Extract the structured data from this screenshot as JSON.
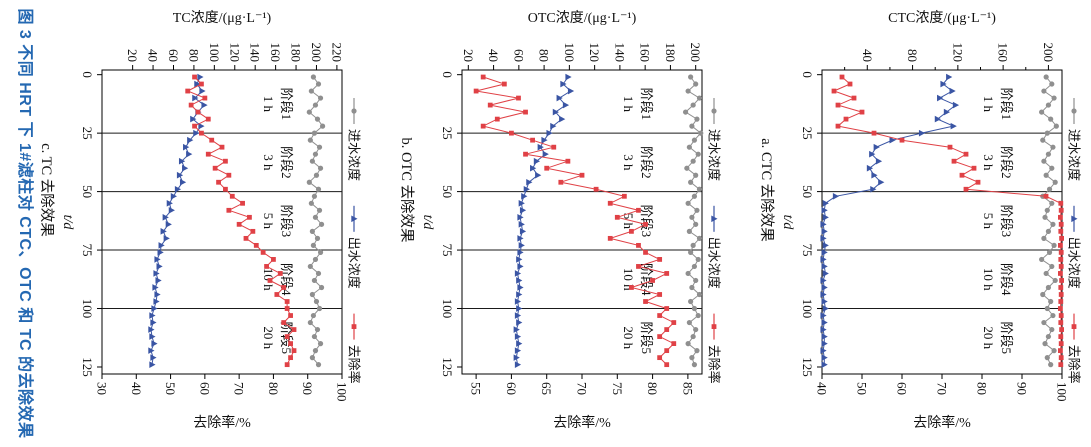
{
  "figure_caption": "图 3    不同 HRT 下 1#滤柱对 CTC、OTC 和 TC 的去除效果",
  "colors": {
    "influent": "#8f8f8f",
    "effluent": "#3a55a4",
    "removal": "#e04146",
    "caption_blue": "#2468b2",
    "axis": "#000000"
  },
  "legend": {
    "influent": "进水浓度",
    "effluent": "出水浓度",
    "removal": "去除率"
  },
  "stages": [
    {
      "line1": "阶段1",
      "line2": "1 h",
      "t_center": 12.5
    },
    {
      "line1": "阶段2",
      "line2": "3 h",
      "t_center": 37.5
    },
    {
      "line1": "阶段3",
      "line2": "5 h",
      "t_center": 62.5
    },
    {
      "line1": "阶段4",
      "line2": "10 h",
      "t_center": 87.5
    },
    {
      "line1": "阶段5",
      "line2": "20 h",
      "t_center": 112.5
    }
  ],
  "chart_data": [
    {
      "id": "a",
      "type": "line",
      "subtitle": "a. CTC 去除效果",
      "conc_axis": {
        "label": "CTC浓度/(μg·L⁻¹)",
        "ticks": [
          40,
          80,
          120,
          160,
          200
        ],
        "minor_ticks": [
          20,
          60,
          100,
          140,
          180
        ],
        "lim": [
          0,
          212
        ]
      },
      "removal_axis": {
        "label": "去除率/%",
        "ticks": [
          40,
          50,
          60,
          70,
          80,
          90,
          100
        ],
        "lim": [
          40,
          100
        ]
      },
      "time_axis": {
        "label": "t/d",
        "ticks": [
          0,
          25,
          50,
          75,
          100,
          125
        ],
        "lim": [
          -2,
          128
        ]
      },
      "stage_boundaries": [
        25,
        50,
        75,
        100
      ],
      "t": [
        1,
        4,
        7,
        10,
        13,
        16,
        19,
        22,
        25,
        28,
        31,
        34,
        37,
        40,
        43,
        46,
        49,
        52,
        55,
        58,
        61,
        64,
        67,
        70,
        73,
        76,
        79,
        82,
        85,
        88,
        91,
        94,
        97,
        100,
        103,
        106,
        109,
        112,
        115,
        118,
        121,
        124
      ],
      "series": [
        {
          "name": "进水浓度",
          "axis": "conc",
          "marker": "circle",
          "color_key": "influent",
          "values": [
            198,
            203,
            196,
            205,
            200,
            194,
            202,
            207,
            199,
            195,
            204,
            200,
            196,
            203,
            198,
            206,
            201,
            195,
            203,
            199,
            197,
            204,
            200,
            196,
            205,
            201,
            194,
            203,
            198,
            206,
            200,
            195,
            202,
            199,
            204,
            196,
            203,
            200,
            197,
            205,
            199,
            202
          ]
        },
        {
          "name": "出水浓度",
          "axis": "conc",
          "marker": "triangle",
          "color_key": "effluent",
          "values": [
            112,
            107,
            115,
            104,
            118,
            110,
            102,
            116,
            88,
            62,
            48,
            44,
            50,
            42,
            46,
            52,
            45,
            12,
            3,
            2,
            3,
            1,
            2,
            1,
            3,
            2,
            1,
            2,
            3,
            1,
            2,
            1,
            2,
            3,
            1,
            2,
            1,
            2,
            2,
            1,
            2,
            2
          ]
        },
        {
          "name": "去除率",
          "axis": "removal",
          "marker": "square",
          "color_key": "removal",
          "values": [
            45,
            47,
            43,
            48,
            44,
            50,
            46,
            44,
            53,
            60,
            72,
            76,
            73,
            78,
            75,
            79,
            76,
            96,
            99.7,
            99.8,
            99.6,
            99.8,
            99.7,
            99.9,
            99.6,
            99.8,
            99.7,
            99.8,
            99.6,
            99.9,
            99.7,
            99.8,
            99.7,
            99.6,
            99.8,
            99.7,
            99.9,
            99.7,
            99.8,
            99.6,
            99.8,
            99.7
          ]
        }
      ]
    },
    {
      "id": "b",
      "type": "line",
      "subtitle": "b. OTC 去除效果",
      "conc_axis": {
        "label": "OTC浓度/(μg·L⁻¹)",
        "ticks": [
          20,
          40,
          60,
          80,
          100,
          120,
          140,
          160,
          180,
          200
        ],
        "minor_ticks": [],
        "lim": [
          15,
          205
        ]
      },
      "removal_axis": {
        "label": "去除率/%",
        "ticks": [
          55,
          60,
          65,
          70,
          75,
          80,
          85
        ],
        "lim": [
          53,
          87
        ]
      },
      "time_axis": {
        "label": "t/d",
        "ticks": [
          0,
          25,
          50,
          75,
          100,
          125
        ],
        "lim": [
          -2,
          128
        ]
      },
      "stage_boundaries": [
        25,
        50,
        75,
        100
      ],
      "t": [
        1,
        4,
        7,
        10,
        13,
        16,
        19,
        22,
        25,
        28,
        31,
        34,
        37,
        40,
        43,
        46,
        49,
        52,
        55,
        58,
        61,
        64,
        67,
        70,
        73,
        76,
        79,
        82,
        85,
        88,
        91,
        94,
        97,
        100,
        103,
        106,
        109,
        112,
        115,
        118,
        121,
        124
      ],
      "series": [
        {
          "name": "进水浓度",
          "axis": "conc",
          "marker": "circle",
          "color_key": "influent",
          "values": [
            196,
            200,
            194,
            203,
            198,
            192,
            201,
            197,
            204,
            199,
            195,
            202,
            198,
            193,
            200,
            196,
            203,
            199,
            194,
            201,
            197,
            200,
            195,
            203,
            198,
            196,
            202,
            199,
            194,
            200,
            197,
            203,
            196,
            199,
            202,
            195,
            200,
            198,
            194,
            201,
            197,
            199
          ]
        },
        {
          "name": "出水浓度",
          "axis": "conc",
          "marker": "triangle",
          "color_key": "effluent",
          "values": [
            99,
            95,
            101,
            92,
            97,
            89,
            94,
            87,
            84,
            80,
            77,
            81,
            74,
            71,
            75,
            68,
            66,
            64,
            62,
            63,
            61,
            62,
            63,
            61,
            62,
            61,
            60,
            61,
            59,
            60,
            61,
            60,
            59,
            60,
            59,
            60,
            58,
            59,
            60,
            59,
            58,
            59
          ]
        },
        {
          "name": "去除率",
          "axis": "removal",
          "marker": "square",
          "color_key": "removal",
          "values": [
            56,
            59,
            55,
            61,
            57,
            62,
            58,
            56,
            60,
            63,
            66,
            62,
            68,
            65,
            70,
            67,
            72,
            76,
            74,
            78,
            75,
            79,
            77,
            74,
            78,
            79,
            81,
            78,
            82,
            80,
            77,
            81,
            79,
            82,
            81,
            83,
            82,
            81,
            83,
            82,
            81,
            82
          ]
        }
      ]
    },
    {
      "id": "c",
      "type": "line",
      "subtitle": "c. TC 去除效果",
      "conc_axis": {
        "label": "TC浓度/(μg·L⁻¹)",
        "ticks": [
          20,
          40,
          60,
          80,
          100,
          120,
          140,
          160,
          180,
          200,
          220
        ],
        "minor_ticks": [],
        "lim": [
          -10,
          225
        ]
      },
      "removal_axis": {
        "label": "去除率/%",
        "ticks": [
          30,
          40,
          50,
          60,
          70,
          80,
          90,
          100
        ],
        "lim": [
          30,
          100
        ]
      },
      "time_axis": {
        "label": "t/d",
        "ticks": [
          0,
          25,
          50,
          75,
          100,
          125
        ],
        "lim": [
          -2,
          128
        ]
      },
      "stage_boundaries": [
        25,
        50,
        75,
        100
      ],
      "t": [
        1,
        4,
        7,
        10,
        13,
        16,
        19,
        22,
        25,
        28,
        31,
        34,
        37,
        40,
        43,
        46,
        49,
        52,
        55,
        58,
        61,
        64,
        67,
        70,
        73,
        76,
        79,
        82,
        85,
        88,
        91,
        94,
        97,
        100,
        103,
        106,
        109,
        112,
        115,
        118,
        121,
        124
      ],
      "series": [
        {
          "name": "进水浓度",
          "axis": "conc",
          "marker": "circle",
          "color_key": "influent",
          "values": [
            197,
            202,
            195,
            204,
            199,
            193,
            201,
            206,
            198,
            194,
            203,
            199,
            196,
            204,
            200,
            193,
            202,
            198,
            195,
            203,
            199,
            205,
            196,
            201,
            197,
            204,
            199,
            194,
            202,
            198,
            205,
            196,
            200,
            203,
            197,
            194,
            201,
            198,
            204,
            199,
            196,
            202
          ]
        },
        {
          "name": "出水浓度",
          "axis": "conc",
          "marker": "triangle",
          "color_key": "effluent",
          "values": [
            86,
            83,
            88,
            81,
            90,
            84,
            79,
            87,
            82,
            76,
            72,
            75,
            68,
            71,
            66,
            69,
            64,
            60,
            56,
            58,
            52,
            55,
            50,
            53,
            48,
            47,
            44,
            46,
            43,
            45,
            42,
            44,
            43,
            41,
            39,
            40,
            38,
            39,
            41,
            38,
            40,
            39
          ]
        },
        {
          "name": "去除率",
          "axis": "removal",
          "marker": "square",
          "color_key": "removal",
          "values": [
            57,
            59,
            55,
            60,
            56,
            58,
            61,
            57,
            59,
            62,
            65,
            61,
            66,
            63,
            67,
            64,
            66,
            68,
            71,
            67,
            73,
            70,
            74,
            72,
            75,
            77,
            80,
            78,
            82,
            79,
            83,
            81,
            84,
            84,
            85,
            83,
            86,
            84,
            85,
            86,
            85,
            84
          ]
        }
      ]
    }
  ]
}
